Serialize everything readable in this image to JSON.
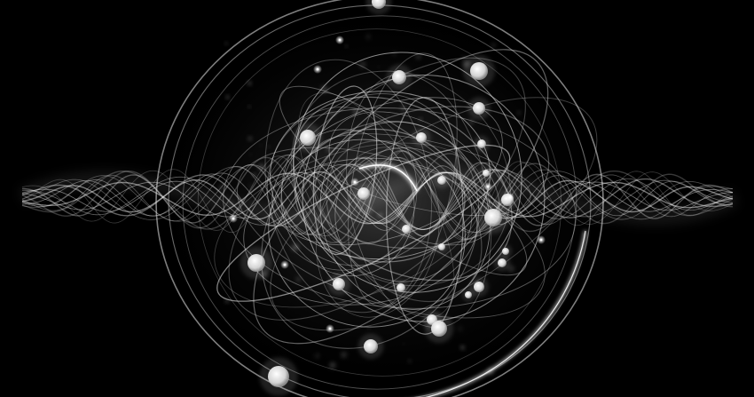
{
  "image": {
    "subject": "abstract-quantum-waves-and-particles",
    "colors": {
      "background": "#000000",
      "wave": "#ffffff",
      "orbit": "#e6e6e6",
      "particle": "#f2f2f2"
    }
  }
}
